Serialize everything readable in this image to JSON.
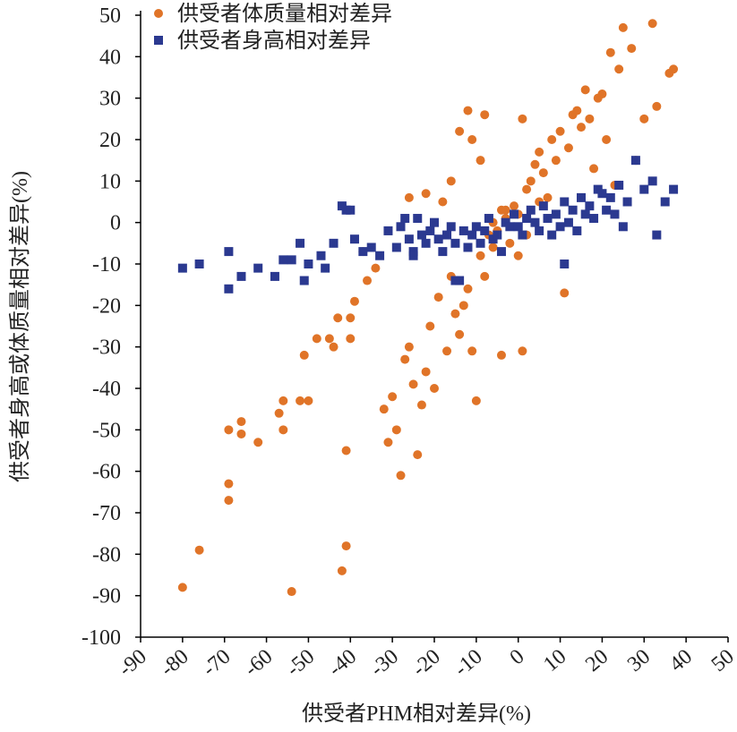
{
  "chart_data": {
    "type": "scatter",
    "x_label": "供受者PHM相对差异(%)",
    "y_label": "供受者身高或体质量相对差异(%)",
    "xlim": [
      -90,
      50
    ],
    "xticks": [
      -90,
      -80,
      -70,
      -60,
      -50,
      -40,
      -30,
      -20,
      -10,
      0,
      10,
      20,
      30,
      40,
      50
    ],
    "ylim": [
      -100,
      50
    ],
    "yticks": [
      -100,
      -90,
      -80,
      -70,
      -60,
      -50,
      -40,
      -30,
      -20,
      -10,
      0,
      10,
      20,
      30,
      40,
      50
    ],
    "legend": "top-left",
    "series": [
      {
        "name": "供受者体质量相对差异",
        "color": "#e07428",
        "marker": "circle",
        "x": [
          -80,
          -76,
          -69,
          -69,
          -69,
          -66,
          -66,
          -62,
          -57,
          -56,
          -56,
          -54,
          -52,
          -51,
          -50,
          -48,
          -45,
          -44,
          -43,
          -42,
          -41,
          -41,
          -40,
          -40,
          -39,
          -37,
          -36,
          -34,
          -32,
          -31,
          -30,
          -29,
          -28,
          -27,
          -26,
          -25,
          -24,
          -23,
          -22,
          -21,
          -20,
          -19,
          -17,
          -16,
          -15,
          -14,
          -13,
          -12,
          -11,
          -10,
          -9,
          -8,
          -7,
          -6,
          -5,
          -4,
          -3,
          -2,
          -1,
          0,
          1,
          2,
          3,
          4,
          5,
          6,
          7,
          8,
          9,
          10,
          11,
          12,
          13,
          14,
          15,
          16,
          17,
          18,
          19,
          20,
          21,
          22,
          23,
          24,
          25,
          27,
          28,
          30,
          32,
          33,
          36,
          37,
          -4,
          -9,
          -11,
          -12,
          -8,
          -14,
          -18,
          -22,
          -26,
          -16,
          1,
          -3,
          2,
          5,
          0,
          -6
        ],
        "values": [
          -88,
          -79,
          -63,
          -67,
          -50,
          -48,
          -51,
          -53,
          -46,
          -43,
          -50,
          -89,
          -43,
          -32,
          -43,
          -28,
          -28,
          -30,
          -23,
          -84,
          -78,
          -55,
          -23,
          -28,
          -19,
          -7,
          -14,
          -11,
          -45,
          -53,
          -42,
          -50,
          -61,
          -33,
          -30,
          -39,
          -56,
          -44,
          -36,
          -25,
          -40,
          -18,
          -31,
          -13,
          -22,
          -27,
          -20,
          -16,
          -31,
          -43,
          -8,
          -13,
          -3,
          -6,
          -2,
          3,
          1,
          -5,
          4,
          2,
          -31,
          8,
          10,
          14,
          17,
          12,
          6,
          20,
          15,
          22,
          -17,
          18,
          26,
          27,
          23,
          32,
          25,
          13,
          30,
          31,
          20,
          41,
          9,
          37,
          47,
          42,
          15,
          25,
          48,
          28,
          36,
          37,
          -32,
          15,
          20,
          27,
          26,
          22,
          5,
          7,
          6,
          10,
          25,
          3,
          -3,
          5,
          -8,
          0
        ]
      },
      {
        "name": "供受者身高相对差异",
        "color": "#2b3990",
        "marker": "square",
        "x": [
          -80,
          -76,
          -69,
          -69,
          -66,
          -62,
          -58,
          -56,
          -54,
          -52,
          -51,
          -50,
          -47,
          -46,
          -44,
          -42,
          -41,
          -40,
          -39,
          -37,
          -35,
          -33,
          -31,
          -29,
          -28,
          -27,
          -26,
          -25,
          -24,
          -23,
          -22,
          -21,
          -20,
          -19,
          -18,
          -17,
          -16,
          -15,
          -14,
          -13,
          -12,
          -11,
          -10,
          -9,
          -8,
          -7,
          -6,
          -5,
          -4,
          -3,
          -2,
          -1,
          0,
          1,
          2,
          3,
          4,
          5,
          6,
          7,
          8,
          9,
          10,
          11,
          12,
          13,
          14,
          15,
          16,
          17,
          18,
          19,
          20,
          21,
          22,
          23,
          24,
          25,
          26,
          28,
          30,
          32,
          33,
          35,
          37,
          11,
          -25,
          -15
        ],
        "values": [
          -11,
          -10,
          -7,
          -16,
          -13,
          -11,
          -13,
          -9,
          -9,
          -5,
          -14,
          -10,
          -8,
          -11,
          -5,
          4,
          3,
          3,
          -4,
          -7,
          -6,
          -8,
          -2,
          -6,
          -1,
          1,
          -4,
          -7,
          1,
          -3,
          -5,
          -2,
          0,
          -4,
          -7,
          -3,
          -1,
          -5,
          -14,
          -2,
          -6,
          -3,
          -1,
          -5,
          -2,
          1,
          -4,
          -3,
          -7,
          0,
          -1,
          2,
          -1,
          -3,
          1,
          3,
          0,
          -2,
          4,
          1,
          -3,
          2,
          -1,
          5,
          0,
          3,
          -2,
          6,
          2,
          4,
          1,
          8,
          7,
          3,
          6,
          2,
          9,
          -1,
          5,
          15,
          8,
          10,
          -3,
          5,
          8,
          -10,
          -8,
          -14
        ]
      }
    ]
  }
}
